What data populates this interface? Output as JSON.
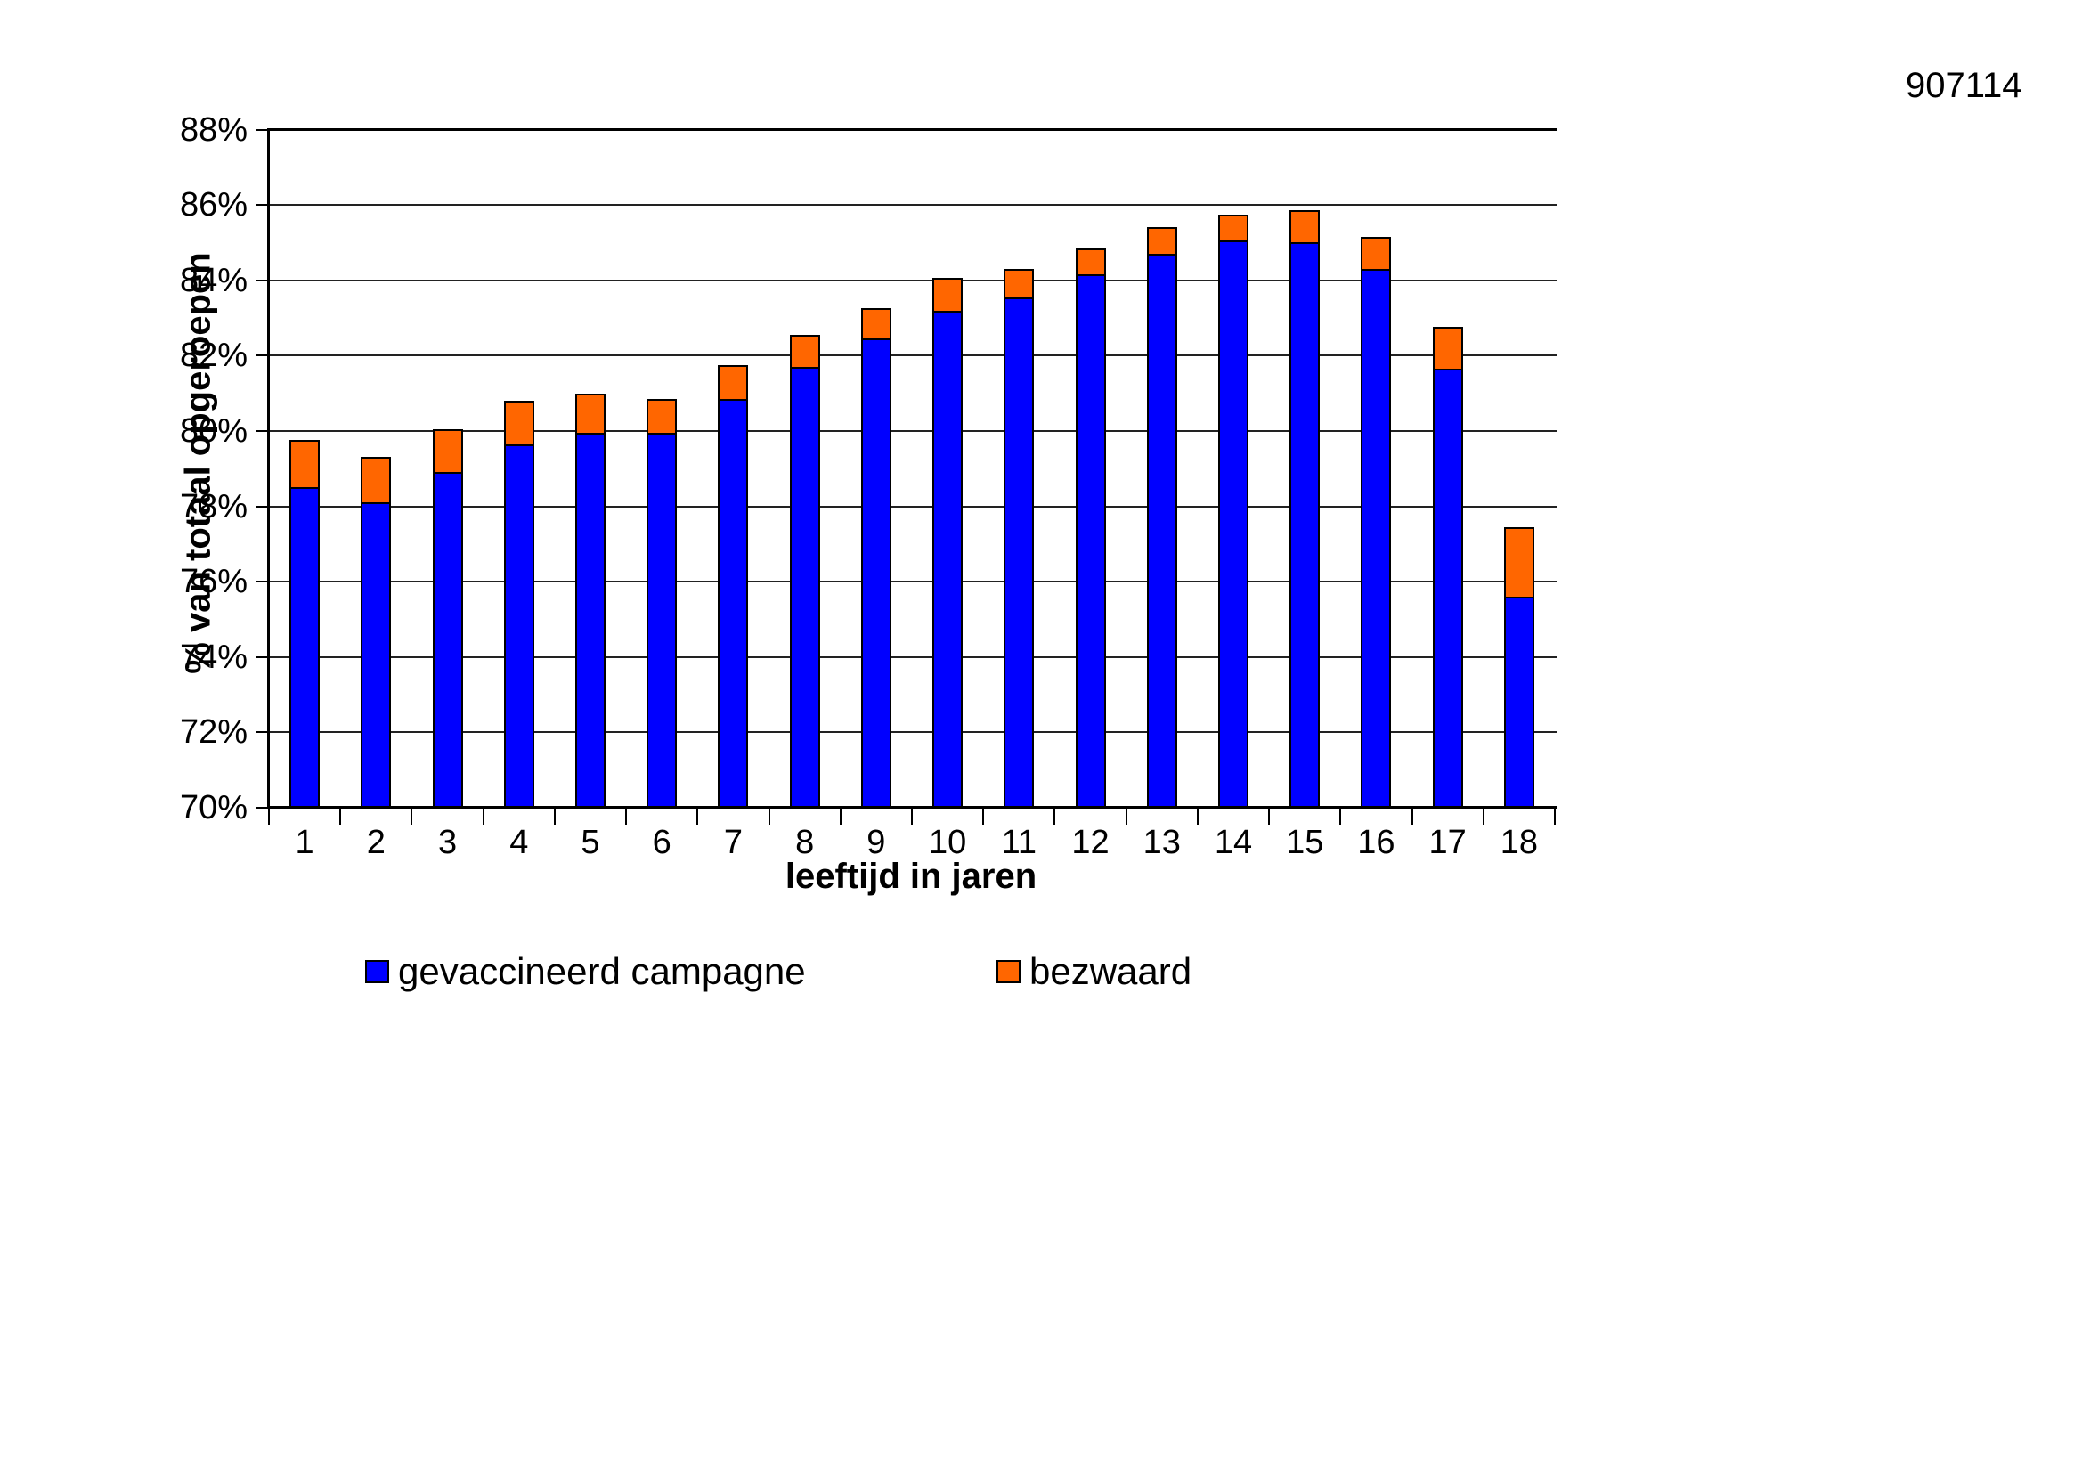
{
  "page_id": "907114",
  "chart_data": {
    "type": "bar",
    "stacked": true,
    "title": "",
    "xlabel": "leeftijd in jaren",
    "ylabel": "% van totaal opgeroepen",
    "categories": [
      "1",
      "2",
      "3",
      "4",
      "5",
      "6",
      "7",
      "8",
      "9",
      "10",
      "11",
      "12",
      "13",
      "14",
      "15",
      "16",
      "17",
      "18"
    ],
    "series": [
      {
        "name": "gevaccineerd campagne",
        "color": "#0000FF",
        "values": [
          78.5,
          78.1,
          78.9,
          79.65,
          79.95,
          79.95,
          80.85,
          81.7,
          82.45,
          83.2,
          83.55,
          84.15,
          84.7,
          85.05,
          85.0,
          84.3,
          81.65,
          75.6
        ]
      },
      {
        "name": "bezwaard",
        "color": "#FF6600",
        "values": [
          1.3,
          1.25,
          1.2,
          1.2,
          1.1,
          0.95,
          0.95,
          0.9,
          0.85,
          0.9,
          0.8,
          0.75,
          0.75,
          0.75,
          0.9,
          0.9,
          1.15,
          1.9
        ]
      }
    ],
    "stacked_totals": [
      79.8,
      79.35,
      80.1,
      80.85,
      81.05,
      80.9,
      81.8,
      82.6,
      83.3,
      84.1,
      84.35,
      84.9,
      85.45,
      85.8,
      85.9,
      85.2,
      82.8,
      77.5
    ],
    "ylim": [
      70,
      88
    ],
    "ytick_step": 2,
    "ytick_format": "{v}%",
    "grid": true,
    "legend_position": "bottom"
  }
}
